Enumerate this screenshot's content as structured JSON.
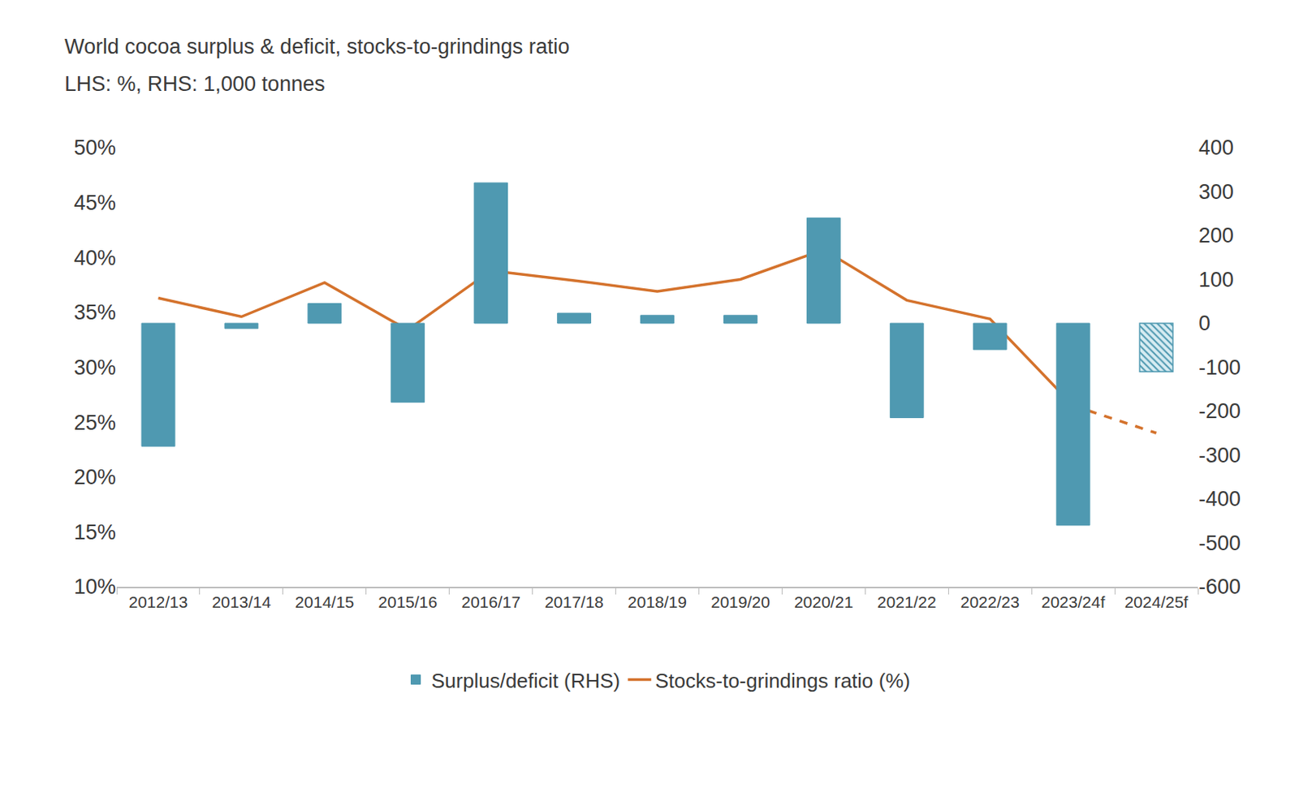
{
  "chart_data": {
    "type": "bar",
    "title": "World cocoa surplus & deficit, stocks-to-grindings ratio",
    "subtitle": "LHS: %, RHS: 1,000 tonnes",
    "categories": [
      "2012/13",
      "2013/14",
      "2014/15",
      "2015/16",
      "2016/17",
      "2017/18",
      "2018/19",
      "2019/20",
      "2020/21",
      "2021/22",
      "2022/23",
      "2023/24f",
      "2024/25f"
    ],
    "series": [
      {
        "name": "Surplus/deficit (RHS)",
        "type": "bar",
        "axis": "y2",
        "color": "#4f99b1",
        "values": [
          -280,
          -12,
          45,
          -180,
          320,
          23,
          18,
          18,
          240,
          -215,
          -60,
          -460,
          null
        ]
      },
      {
        "name": "Surplus/deficit (RHS)",
        "type": "bar",
        "axis": "y2",
        "color": "#4f99b1",
        "marker": "hatched",
        "values": [
          null,
          null,
          null,
          null,
          null,
          null,
          null,
          null,
          null,
          null,
          null,
          null,
          -110
        ]
      },
      {
        "name": "Stocks-to-grindings ratio (%)",
        "type": "line",
        "color": "#d4722c",
        "line_style": "solid",
        "values": [
          36.3,
          34.6,
          37.7,
          33.4,
          38.8,
          37.9,
          36.9,
          38.0,
          40.7,
          36.1,
          34.4,
          26.5,
          null
        ]
      },
      {
        "name": "Stocks-to-grindings ratio (%)",
        "type": "line",
        "color": "#d4722c",
        "line_style": "dashed",
        "values": [
          null,
          null,
          null,
          null,
          null,
          null,
          null,
          null,
          null,
          null,
          null,
          26.5,
          24.0
        ]
      }
    ],
    "ylim": [
      10,
      50
    ],
    "yticks": [
      {
        "value": 10,
        "label": "10%"
      },
      {
        "value": 15,
        "label": "15%"
      },
      {
        "value": 20,
        "label": "20%"
      },
      {
        "value": 25,
        "label": "25%"
      },
      {
        "value": 30,
        "label": "30%"
      },
      {
        "value": 35,
        "label": "35%"
      },
      {
        "value": 40,
        "label": "40%"
      },
      {
        "value": 45,
        "label": "45%"
      },
      {
        "value": 50,
        "label": "50%"
      }
    ],
    "y2lim": [
      -600,
      400
    ],
    "y2ticks": [
      -600,
      -500,
      -400,
      -300,
      -200,
      -100,
      0,
      100,
      200,
      300,
      400
    ],
    "grid": false,
    "legend": "bottom"
  }
}
